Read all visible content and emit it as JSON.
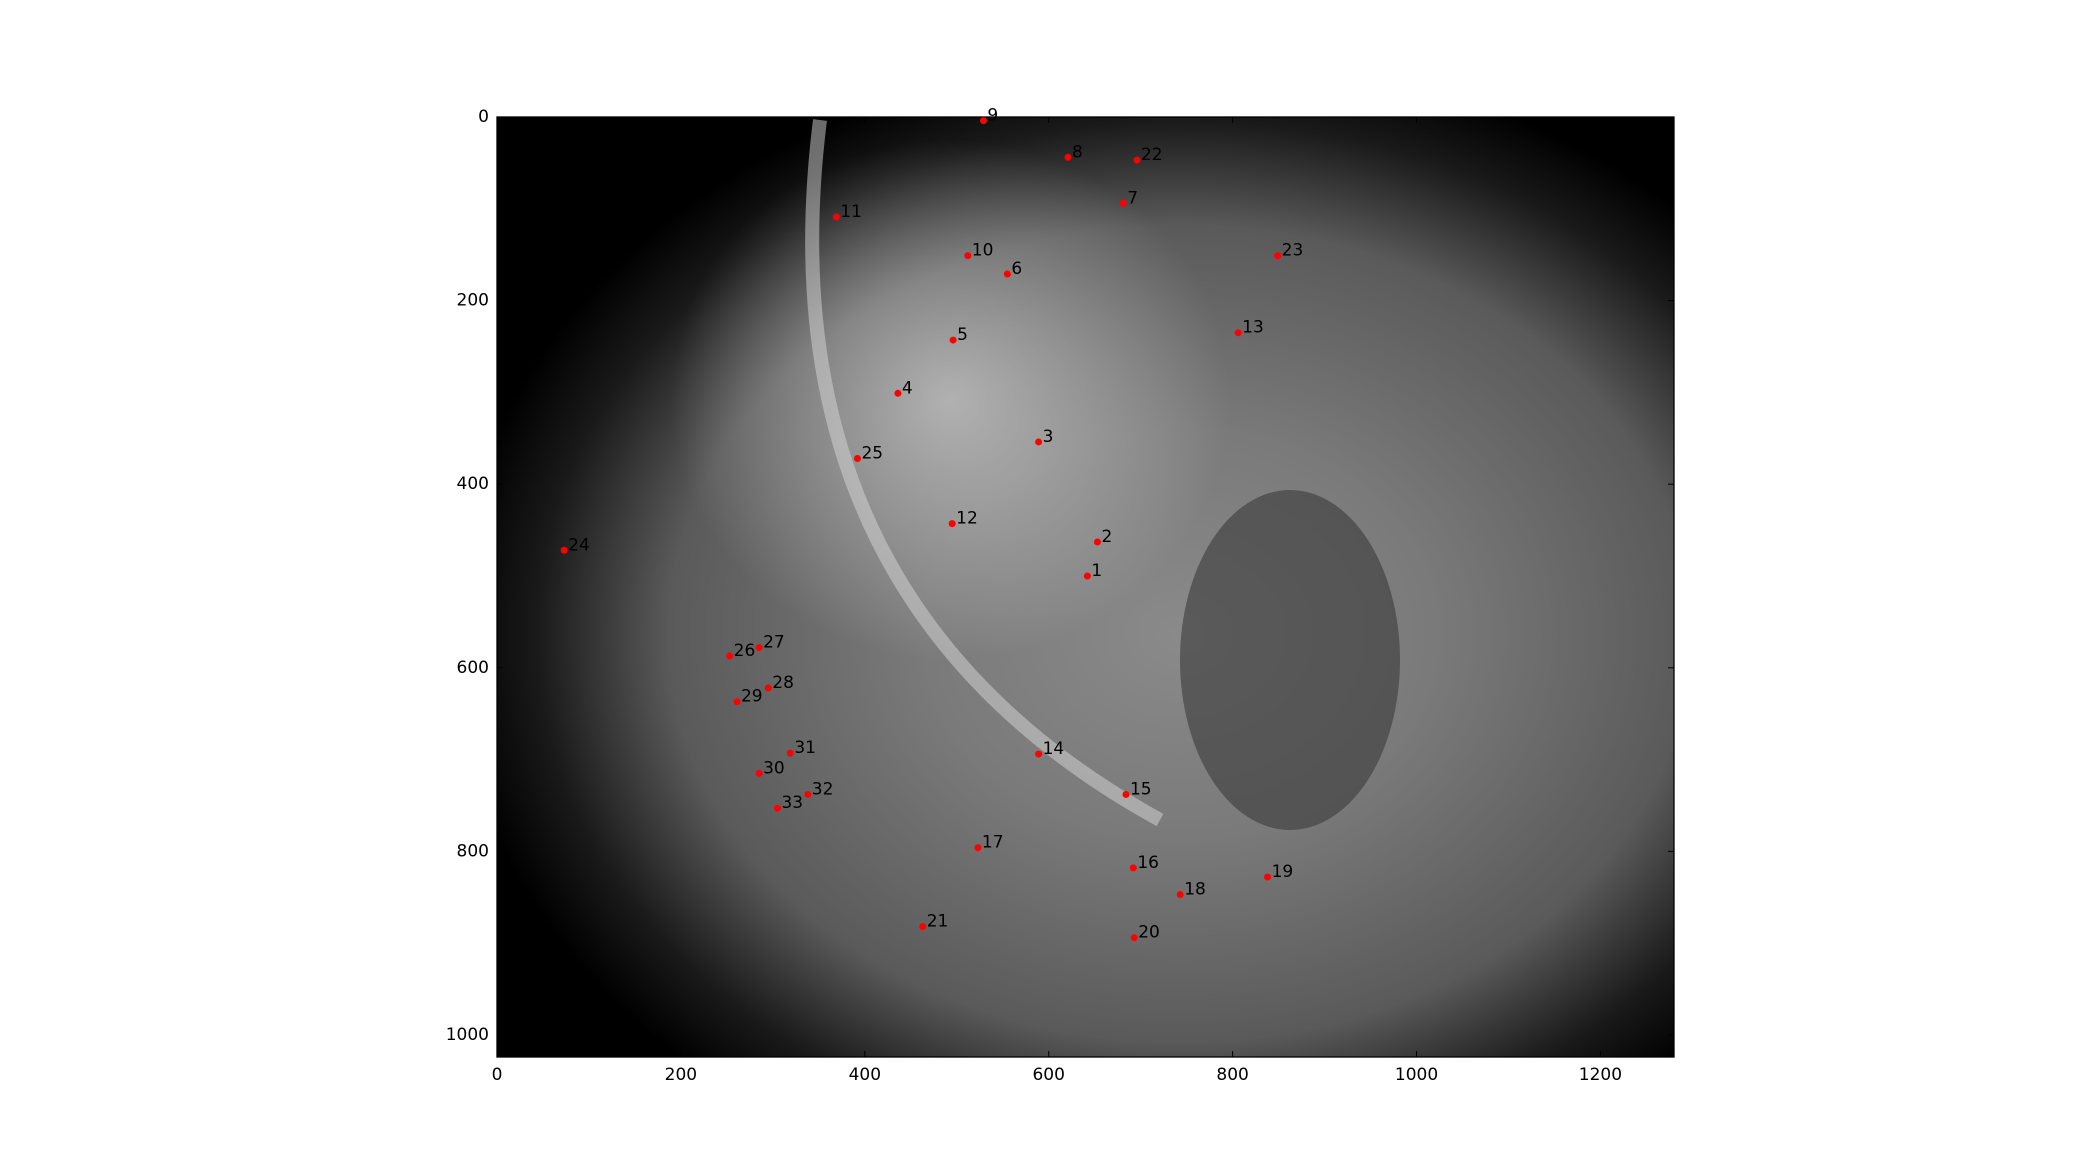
{
  "chart_data": {
    "type": "scatter",
    "x": [
      642,
      653,
      589,
      436,
      496,
      555,
      681,
      621,
      529,
      512,
      369,
      495,
      806,
      589,
      684,
      692,
      523,
      743,
      838,
      693,
      463,
      696,
      849,
      73,
      392,
      253,
      285,
      295,
      261,
      285,
      319,
      338,
      305
    ],
    "series": [
      {
        "color": "#ff0000",
        "values": [
          500,
          463,
          354,
          301,
          243,
          171,
          94,
          44,
          4,
          151,
          109,
          443,
          235,
          694,
          738,
          818,
          796,
          847,
          828,
          894,
          882,
          47,
          151,
          472,
          372,
          587,
          578,
          622,
          637,
          715,
          693,
          738,
          753
        ],
        "point_labels": [
          "1",
          "2",
          "3",
          "4",
          "5",
          "6",
          "7",
          "8",
          "9",
          "10",
          "11",
          "12",
          "13",
          "14",
          "15",
          "16",
          "17",
          "18",
          "19",
          "20",
          "21",
          "22",
          "23",
          "24",
          "25",
          "26",
          "27",
          "28",
          "29",
          "30",
          "31",
          "32",
          "33"
        ]
      }
    ],
    "xlim": [
      0,
      1280
    ],
    "ylim": [
      1024,
      0
    ],
    "xticks": [
      0,
      200,
      400,
      600,
      800,
      1000,
      1200
    ],
    "yticks": [
      0,
      200,
      400,
      600,
      800,
      1000
    ]
  }
}
